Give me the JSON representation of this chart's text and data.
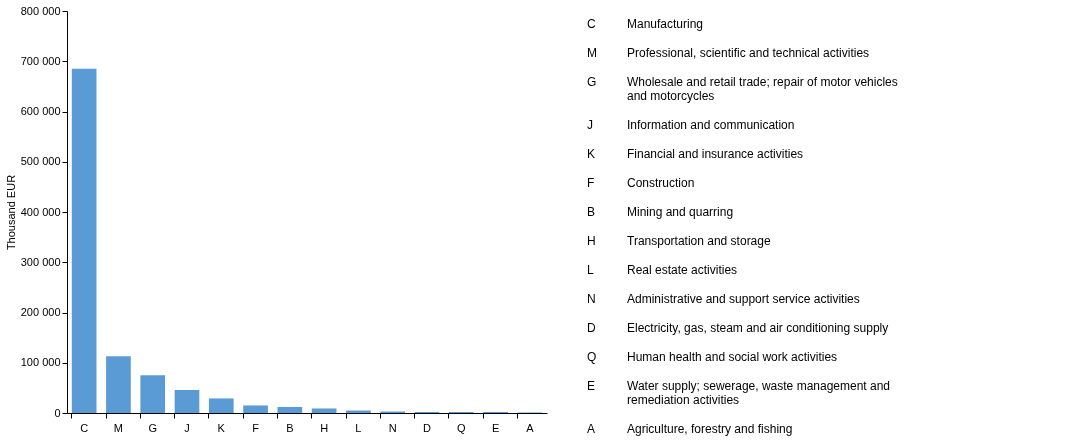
{
  "chart_data": {
    "type": "bar",
    "ylabel": "Thousand EUR",
    "categories": [
      "C",
      "M",
      "G",
      "J",
      "K",
      "F",
      "B",
      "H",
      "L",
      "N",
      "D",
      "Q",
      "E",
      "A"
    ],
    "values": [
      685000,
      113000,
      75000,
      46000,
      29000,
      15000,
      12000,
      9000,
      5000,
      3000,
      2000,
      2000,
      2000,
      1000
    ],
    "color": "#5b9bd5",
    "ylim": [
      0,
      800000
    ],
    "yticks": [
      {
        "value": 0,
        "label": "0"
      },
      {
        "value": 100000,
        "label": "100 000"
      },
      {
        "value": 200000,
        "label": "200 000"
      },
      {
        "value": 300000,
        "label": "300 000"
      },
      {
        "value": 400000,
        "label": "400 000"
      },
      {
        "value": 500000,
        "label": "500 000"
      },
      {
        "value": 600000,
        "label": "600 000"
      },
      {
        "value": 700000,
        "label": "700 000"
      },
      {
        "value": 800000,
        "label": "800 000"
      }
    ],
    "grid": false,
    "annotations": [
      "Manufacturing",
      "Professional, scientific and technical activities",
      "Wholesale and retail trade; repair of motor vehicles and motorcycles",
      "Information and communication",
      "Financial and insurance activities",
      "Construction",
      "Mining and quarring",
      "Transportation and storage",
      "Real estate activities",
      "Administrative and support service activities",
      "Electricity, gas, steam and air conditioning supply",
      "Human health and social work activities",
      "Water supply; sewerage, waste management and remediation activities",
      "Agriculture, forestry and fishing"
    ]
  }
}
